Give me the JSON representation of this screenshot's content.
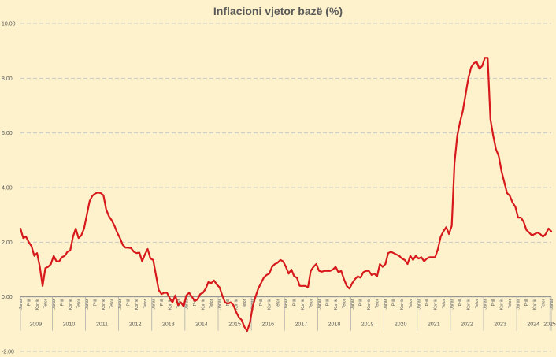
{
  "chart_data": {
    "type": "line",
    "title": "Inflacioni vjetor bazë (%)",
    "xlabel": "",
    "ylabel": "",
    "ylim": [
      -2,
      10
    ],
    "y_ticks": [
      "-2.00",
      "0.00",
      "2.00",
      "4.00",
      "6.00",
      "8.00",
      "10.00"
    ],
    "grid": "horizontal dashed",
    "line_color": "#d7191c",
    "month_tick_labels": [
      "Janar",
      "Prill",
      "Korrik",
      "Tetor"
    ],
    "year_labels": [
      "2009",
      "2010",
      "2011",
      "2012",
      "2013",
      "2014",
      "2015",
      "2016",
      "2017",
      "2018",
      "2019",
      "2020",
      "2021",
      "2022",
      "2023",
      "2024",
      "2025"
    ],
    "x_start": "2009-01",
    "series": [
      {
        "values": [
          2.5,
          2.15,
          2.2,
          2.0,
          1.85,
          1.5,
          1.6,
          1.1,
          0.4,
          1.05,
          1.1,
          1.2,
          1.5,
          1.3,
          1.3,
          1.45,
          1.5,
          1.65,
          1.7,
          2.2,
          2.5,
          2.15,
          2.25,
          2.5,
          3.0,
          3.5,
          3.7,
          3.78,
          3.82,
          3.8,
          3.72,
          3.2,
          2.95,
          2.8,
          2.6,
          2.35,
          2.15,
          1.9,
          1.8,
          1.8,
          1.78,
          1.65,
          1.6,
          1.62,
          1.3,
          1.55,
          1.75,
          1.4,
          1.35,
          0.8,
          0.25,
          0.1,
          0.15,
          0.15,
          -0.05,
          -0.2,
          0.05,
          -0.3,
          -0.2,
          -0.35,
          0.05,
          0.15,
          0.0,
          -0.15,
          -0.1,
          0.1,
          0.15,
          0.3,
          0.55,
          0.5,
          0.6,
          0.45,
          0.35,
          0.05,
          -0.2,
          -0.25,
          -0.2,
          -0.3,
          -0.55,
          -0.75,
          -0.85,
          -1.1,
          -1.25,
          -0.95,
          -0.35,
          0.0,
          0.3,
          0.5,
          0.7,
          0.8,
          0.85,
          1.1,
          1.2,
          1.25,
          1.35,
          1.3,
          1.1,
          0.85,
          1.0,
          0.75,
          0.7,
          0.4,
          0.4,
          0.4,
          0.35,
          0.95,
          1.1,
          1.2,
          0.95,
          0.92,
          0.95,
          0.95,
          0.95,
          1.0,
          1.1,
          0.9,
          0.95,
          0.65,
          0.4,
          0.3,
          0.5,
          0.65,
          0.75,
          0.7,
          0.9,
          0.95,
          0.95,
          0.8,
          0.85,
          0.75,
          1.2,
          1.1,
          1.2,
          1.6,
          1.65,
          1.6,
          1.55,
          1.5,
          1.4,
          1.35,
          1.2,
          1.5,
          1.35,
          1.5,
          1.4,
          1.45,
          1.3,
          1.4,
          1.45,
          1.45,
          1.45,
          1.75,
          2.2,
          2.4,
          2.55,
          2.3,
          2.6,
          4.9,
          5.9,
          6.4,
          6.8,
          7.4,
          8.0,
          8.4,
          8.55,
          8.6,
          8.35,
          8.45,
          8.75,
          8.75,
          6.5,
          5.9,
          5.4,
          5.15,
          4.6,
          4.2,
          3.8,
          3.7,
          3.45,
          3.3,
          2.9,
          2.9,
          2.75,
          2.45,
          2.35,
          2.25,
          2.3,
          2.35,
          2.3,
          2.2,
          2.3,
          2.5,
          2.4
        ]
      }
    ]
  }
}
